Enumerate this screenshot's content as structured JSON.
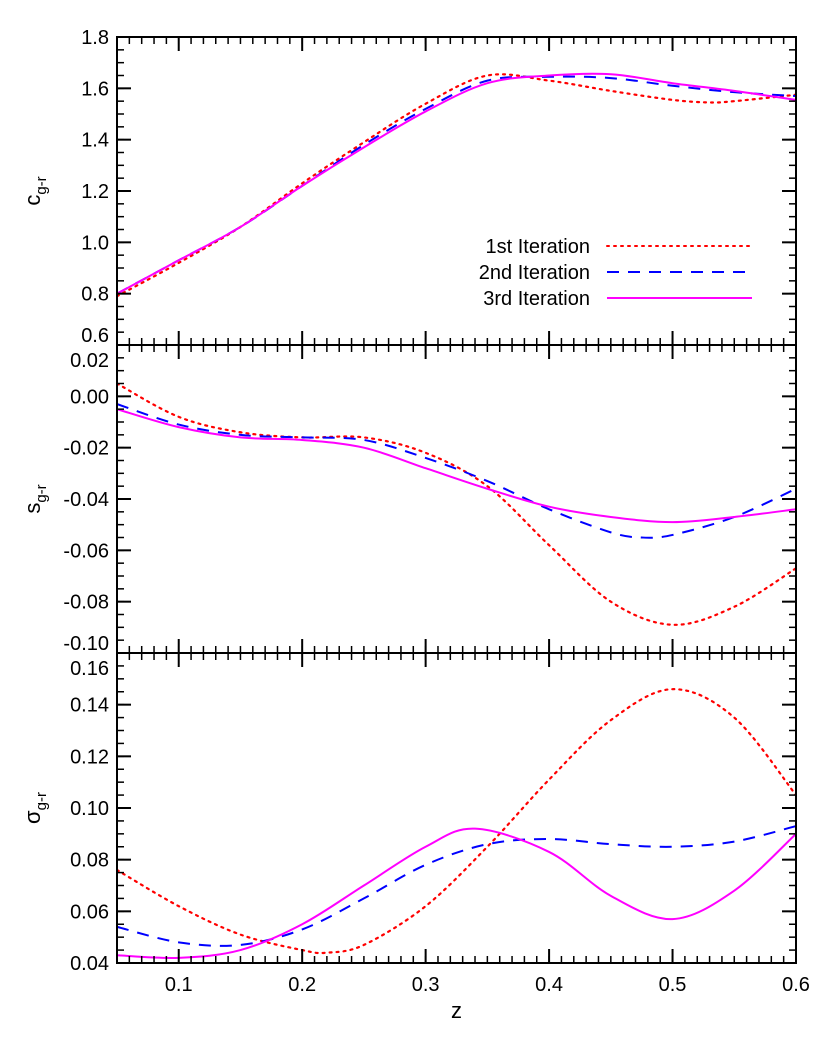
{
  "chart_data": [
    {
      "type": "line",
      "ylabel": "c",
      "ylabel_sub": "g-r",
      "xlim": [
        0.05,
        0.6
      ],
      "ylim": [
        0.6,
        1.8
      ],
      "yticks": [
        "0.6",
        "0.8",
        "1.0",
        "1.2",
        "1.4",
        "1.6",
        "1.8"
      ],
      "ytick_values": [
        0.6,
        0.8,
        1.0,
        1.2,
        1.4,
        1.6,
        1.8
      ],
      "yminor": 0.05,
      "legend": {
        "placement": "lower-right"
      },
      "series": [
        {
          "name": "1st Iteration",
          "color": "#ff0000",
          "style": "dotted",
          "x": [
            0.05,
            0.1,
            0.15,
            0.2,
            0.25,
            0.3,
            0.35,
            0.4,
            0.45,
            0.5,
            0.53,
            0.55,
            0.6
          ],
          "y": [
            0.79,
            0.92,
            1.06,
            1.23,
            1.39,
            1.54,
            1.65,
            1.63,
            1.59,
            1.555,
            1.545,
            1.55,
            1.575
          ]
        },
        {
          "name": "2nd Iteration",
          "color": "#0000ff",
          "style": "dashed",
          "x": [
            0.05,
            0.1,
            0.15,
            0.2,
            0.25,
            0.3,
            0.35,
            0.4,
            0.45,
            0.5,
            0.55,
            0.6
          ],
          "y": [
            0.8,
            0.93,
            1.06,
            1.22,
            1.38,
            1.52,
            1.63,
            1.645,
            1.64,
            1.61,
            1.585,
            1.57
          ]
        },
        {
          "name": "3rd Iteration",
          "color": "#ff00ff",
          "style": "solid",
          "x": [
            0.05,
            0.1,
            0.15,
            0.2,
            0.25,
            0.3,
            0.35,
            0.4,
            0.45,
            0.5,
            0.55,
            0.6
          ],
          "y": [
            0.8,
            0.93,
            1.06,
            1.22,
            1.37,
            1.51,
            1.62,
            1.65,
            1.655,
            1.62,
            1.59,
            1.555
          ]
        }
      ]
    },
    {
      "type": "line",
      "ylabel": "s",
      "ylabel_sub": "g-r",
      "xlim": [
        0.05,
        0.6
      ],
      "ylim": [
        -0.1,
        0.02
      ],
      "yticks": [
        "-0.10",
        "-0.08",
        "-0.06",
        "-0.04",
        "-0.02",
        "0.00",
        "0.02"
      ],
      "ytick_values": [
        -0.1,
        -0.08,
        -0.06,
        -0.04,
        -0.02,
        0.0,
        0.02
      ],
      "yminor": 0.005,
      "series": [
        {
          "name": "1st Iteration",
          "color": "#ff0000",
          "style": "dotted",
          "x": [
            0.05,
            0.1,
            0.15,
            0.2,
            0.25,
            0.3,
            0.35,
            0.4,
            0.45,
            0.5,
            0.55,
            0.6
          ],
          "y": [
            0.005,
            -0.008,
            -0.014,
            -0.016,
            -0.016,
            -0.022,
            -0.035,
            -0.058,
            -0.08,
            -0.089,
            -0.082,
            -0.067
          ]
        },
        {
          "name": "2nd Iteration",
          "color": "#0000ff",
          "style": "dashed",
          "x": [
            0.05,
            0.1,
            0.15,
            0.2,
            0.25,
            0.3,
            0.35,
            0.4,
            0.45,
            0.475,
            0.5,
            0.55,
            0.6
          ],
          "y": [
            -0.003,
            -0.011,
            -0.015,
            -0.016,
            -0.017,
            -0.024,
            -0.033,
            -0.044,
            -0.053,
            -0.055,
            -0.054,
            -0.047,
            -0.036
          ]
        },
        {
          "name": "3rd Iteration",
          "color": "#ff00ff",
          "style": "solid",
          "x": [
            0.05,
            0.1,
            0.15,
            0.2,
            0.25,
            0.3,
            0.35,
            0.4,
            0.45,
            0.5,
            0.55,
            0.6
          ],
          "y": [
            -0.005,
            -0.012,
            -0.016,
            -0.017,
            -0.02,
            -0.028,
            -0.036,
            -0.043,
            -0.047,
            -0.049,
            -0.047,
            -0.044
          ]
        }
      ]
    },
    {
      "type": "line",
      "ylabel": "σ",
      "ylabel_sub": "g-r",
      "xlabel": "z",
      "xlim": [
        0.05,
        0.6
      ],
      "ylim": [
        0.04,
        0.16
      ],
      "xticks": [
        "0.1",
        "0.2",
        "0.3",
        "0.4",
        "0.5",
        "0.6"
      ],
      "xtick_values": [
        0.1,
        0.2,
        0.3,
        0.4,
        0.5,
        0.6
      ],
      "xminor": 0.01,
      "yticks": [
        "0.04",
        "0.06",
        "0.08",
        "0.10",
        "0.12",
        "0.14",
        "0.16"
      ],
      "ytick_values": [
        0.04,
        0.06,
        0.08,
        0.1,
        0.12,
        0.14,
        0.16
      ],
      "yminor": 0.005,
      "series": [
        {
          "name": "1st Iteration",
          "color": "#ff0000",
          "style": "dotted",
          "x": [
            0.05,
            0.1,
            0.15,
            0.2,
            0.22,
            0.25,
            0.3,
            0.35,
            0.4,
            0.45,
            0.5,
            0.55,
            0.6
          ],
          "y": [
            0.076,
            0.062,
            0.051,
            0.045,
            0.044,
            0.047,
            0.062,
            0.085,
            0.111,
            0.134,
            0.146,
            0.135,
            0.105
          ]
        },
        {
          "name": "2nd Iteration",
          "color": "#0000ff",
          "style": "dashed",
          "x": [
            0.05,
            0.1,
            0.15,
            0.2,
            0.25,
            0.3,
            0.35,
            0.4,
            0.45,
            0.5,
            0.55,
            0.6
          ],
          "y": [
            0.054,
            0.048,
            0.047,
            0.053,
            0.065,
            0.078,
            0.086,
            0.088,
            0.086,
            0.085,
            0.087,
            0.093
          ]
        },
        {
          "name": "3rd Iteration",
          "color": "#ff00ff",
          "style": "solid",
          "x": [
            0.05,
            0.1,
            0.15,
            0.2,
            0.25,
            0.3,
            0.34,
            0.4,
            0.45,
            0.5,
            0.55,
            0.6
          ],
          "y": [
            0.043,
            0.042,
            0.045,
            0.055,
            0.07,
            0.085,
            0.092,
            0.083,
            0.066,
            0.057,
            0.068,
            0.09
          ]
        }
      ]
    }
  ]
}
